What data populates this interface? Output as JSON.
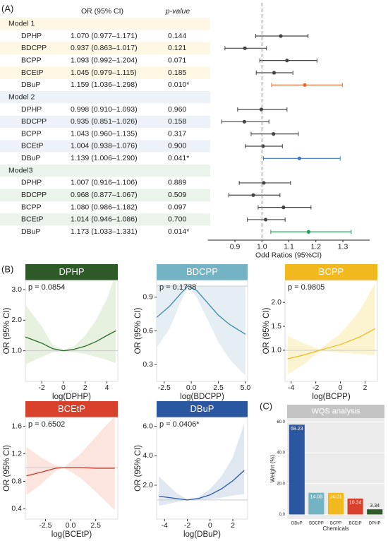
{
  "panels": {
    "a": "(A)",
    "b": "(B)",
    "c": "(C)"
  },
  "chart_data": [
    {
      "type": "forest",
      "headers": [
        "OR (95% CI)",
        "p-value"
      ],
      "xlabel": "Odd Ratios (95%CI)",
      "xlim": [
        0.8,
        1.4
      ],
      "xticks": [
        0.9,
        {
          "value": 1,
          "label": "1.0"
        },
        1.1,
        1.2,
        1.3
      ],
      "ref_line": 1,
      "groups": [
        {
          "name": "Model 1",
          "band_color": "#fdf7e3",
          "rows": [
            {
              "label": "DPHP",
              "or_label": "1.070 (0.977–1.171)",
              "p_label": "0.144",
              "estimate": 1.07,
              "lower": 0.977,
              "upper": 1.171,
              "color": "#444444"
            },
            {
              "label": "BDCPP",
              "or_label": "0.937 (0.863–1.017)",
              "p_label": "0.121",
              "estimate": 0.937,
              "lower": 0.863,
              "upper": 1.017,
              "color": "#444444"
            },
            {
              "label": "BCPP",
              "or_label": "1.093 (0.992–1.204)",
              "p_label": "0.071",
              "estimate": 1.093,
              "lower": 0.992,
              "upper": 1.204,
              "color": "#444444"
            },
            {
              "label": "BCEtP",
              "or_label": "1.045 (0.979–1.115)",
              "p_label": "0.185",
              "estimate": 1.045,
              "lower": 0.979,
              "upper": 1.115,
              "color": "#444444"
            },
            {
              "label": "DBuP",
              "or_label": "1.159 (1.036–1.298)",
              "p_label": "0.010*",
              "estimate": 1.159,
              "lower": 1.036,
              "upper": 1.298,
              "color": "#e8692e"
            }
          ]
        },
        {
          "name": "Model 2",
          "band_color": "#edf1f8",
          "rows": [
            {
              "label": "DPHP",
              "or_label": "0.998 (0.910–1.093)",
              "p_label": "0.960",
              "estimate": 0.998,
              "lower": 0.91,
              "upper": 1.093,
              "color": "#444444"
            },
            {
              "label": "BDCPP",
              "or_label": "0.935 (0.851–1.026)",
              "p_label": "0.158",
              "estimate": 0.935,
              "lower": 0.851,
              "upper": 1.026,
              "color": "#444444"
            },
            {
              "label": "BCPP",
              "or_label": "1.043 (0.960–1.135)",
              "p_label": "0.317",
              "estimate": 1.043,
              "lower": 0.96,
              "upper": 1.135,
              "color": "#444444"
            },
            {
              "label": "BCEtP",
              "or_label": "1.004 (0.938–1.076)",
              "p_label": "0.900",
              "estimate": 1.004,
              "lower": 0.938,
              "upper": 1.076,
              "color": "#444444"
            },
            {
              "label": "DBuP",
              "or_label": "1.139 (1.006–1.290)",
              "p_label": "0.041*",
              "estimate": 1.139,
              "lower": 1.006,
              "upper": 1.29,
              "color": "#3a78c4"
            }
          ]
        },
        {
          "name": "Model3",
          "band_color": "#eaf4ea",
          "rows": [
            {
              "label": "DPHP",
              "or_label": "1.007 (0.916–1.106)",
              "p_label": "0.889",
              "estimate": 1.007,
              "lower": 0.916,
              "upper": 1.106,
              "color": "#444444"
            },
            {
              "label": "BDCPP",
              "or_label": "0.968 (0.877–1.067)",
              "p_label": "0.509",
              "estimate": 0.968,
              "lower": 0.877,
              "upper": 1.067,
              "color": "#444444"
            },
            {
              "label": "BCPP",
              "or_label": "1.080 (0.986–1.182)",
              "p_label": "0.097",
              "estimate": 1.08,
              "lower": 0.986,
              "upper": 1.182,
              "color": "#444444"
            },
            {
              "label": "BCEtP",
              "or_label": "1.014 (0.946–1.086)",
              "p_label": "0.700",
              "estimate": 1.014,
              "lower": 0.946,
              "upper": 1.086,
              "color": "#444444"
            },
            {
              "label": "DBuP",
              "or_label": "1.173 (1.033–1.331)",
              "p_label": "0.014*",
              "estimate": 1.173,
              "lower": 1.033,
              "upper": 1.331,
              "color": "#2a9a5a"
            }
          ]
        }
      ]
    },
    {
      "type": "rcs",
      "title": "DPHP",
      "p_text": "p = 0.0854",
      "xlabel": "log(DPHP)",
      "ylabel": "OR (95% CI)",
      "header_color": "#2d5a27",
      "color": "#2e6b2a",
      "band_color": "#e4f0dd",
      "ref_line": 1,
      "xlim": [
        -3.5,
        5
      ],
      "xticks": [
        -2,
        0,
        2,
        4
      ],
      "ylim": [
        0,
        3.3
      ],
      "yticks": [
        {
          "value": 1,
          "label": "1.0"
        },
        {
          "value": 2,
          "label": "2.0"
        },
        {
          "value": 3,
          "label": "3.0"
        }
      ],
      "x": [
        -3.5,
        -2,
        -1,
        0,
        1,
        2,
        3,
        4,
        4.8
      ],
      "values": [
        1.45,
        1.25,
        1.07,
        1.0,
        1.05,
        1.15,
        1.3,
        1.5,
        1.65
      ],
      "lower": [
        0.55,
        0.8,
        0.95,
        0.98,
        0.95,
        0.9,
        0.8,
        0.7,
        0.6
      ],
      "upper": [
        2.5,
        1.8,
        1.2,
        1.02,
        1.15,
        1.5,
        2.0,
        2.7,
        3.5
      ]
    },
    {
      "type": "rcs",
      "title": "BDCPP",
      "p_text": "p = 0.1738",
      "xlabel": "log(BDCPP)",
      "ylabel": "OR (95% CI)",
      "header_color": "#74b3c4",
      "color": "#3a8ab0",
      "band_color": "#e2edf2",
      "ref_line": 1,
      "xlim": [
        -3.2,
        5.2
      ],
      "xticks": [
        -2.5,
        {
          "value": 0,
          "label": "0.0"
        },
        2.5,
        {
          "value": 5,
          "label": "5.0"
        }
      ],
      "ylim": [
        0.15,
        1.05
      ],
      "yticks": [
        0.3,
        0.6,
        0.9
      ],
      "x": [
        -3.2,
        -2,
        -1,
        -0.3,
        0.5,
        1.5,
        2.5,
        3.5,
        5
      ],
      "values": [
        0.72,
        0.82,
        0.93,
        1.0,
        0.96,
        0.85,
        0.74,
        0.66,
        0.57
      ],
      "lower": [
        0.45,
        0.62,
        0.85,
        0.99,
        0.9,
        0.7,
        0.5,
        0.35,
        0.2
      ],
      "upper": [
        1.02,
        1.01,
        1.0,
        1.0,
        1.0,
        1.0,
        1.0,
        1.0,
        1.0
      ]
    },
    {
      "type": "rcs",
      "title": "BCPP",
      "p_text": "p = 0.9805",
      "xlabel": "log(BCPP)",
      "ylabel": "OR (95% CI)",
      "header_color": "#f2b91f",
      "color": "#f0bb26",
      "band_color": "#fcf2cc",
      "ref_line": 1,
      "xlim": [
        -4.5,
        3
      ],
      "xticks": [
        -4,
        -2,
        0,
        2
      ],
      "ylim": [
        0.35,
        2.46
      ],
      "yticks": [
        {
          "value": 1,
          "label": "1.0"
        },
        1.5,
        {
          "value": 2,
          "label": "2.0"
        }
      ],
      "x": [
        -4.3,
        -3,
        -1.7,
        0,
        1.5,
        2.8
      ],
      "values": [
        0.82,
        0.9,
        1.0,
        1.12,
        1.27,
        1.45
      ],
      "lower": [
        0.5,
        0.7,
        0.98,
        0.95,
        0.92,
        0.9
      ],
      "upper": [
        1.3,
        1.15,
        1.02,
        1.35,
        1.8,
        2.4
      ]
    },
    {
      "type": "rcs",
      "title": "BCEtP",
      "p_text": "p = 0.6502",
      "xlabel": "log(BCEtP)",
      "ylabel": "OR (95% CI)",
      "header_color": "#d8412c",
      "color": "#c0392b",
      "band_color": "#fbe2da",
      "ref_line": 1,
      "xlim": [
        -4.5,
        4.7
      ],
      "xticks": [
        -2.5,
        {
          "value": 0,
          "label": "0.0"
        },
        2.5
      ],
      "ylim": [
        0.25,
        1.73
      ],
      "yticks": [
        0.4,
        0.8,
        1.2,
        1.6
      ],
      "x": [
        -4.4,
        -3,
        -1.5,
        -0.7,
        1,
        2.5,
        4.4
      ],
      "values": [
        0.88,
        0.93,
        0.99,
        1.0,
        1.0,
        0.99,
        0.99
      ],
      "lower": [
        0.6,
        0.75,
        0.95,
        1.0,
        0.85,
        0.65,
        0.38
      ],
      "upper": [
        1.3,
        1.15,
        1.03,
        1.0,
        1.2,
        1.45,
        1.75
      ]
    },
    {
      "type": "rcs",
      "title": "DBuP",
      "p_text": "p = 0.0406*",
      "xlabel": "log(DBuP)",
      "ylabel": "OR (95% CI)",
      "header_color": "#2b56a0",
      "color": "#2b56a0",
      "band_color": "#dce5f0",
      "ref_line": 1,
      "xlim": [
        -4.7,
        3.3
      ],
      "xticks": [
        -4,
        -2,
        0,
        2
      ],
      "ylim": [
        -0.3,
        6.6
      ],
      "yticks": [
        {
          "value": 2,
          "label": "2.0"
        },
        {
          "value": 4,
          "label": "4.0"
        },
        {
          "value": 6,
          "label": "6.0"
        }
      ],
      "x": [
        -4.5,
        -3,
        -2,
        -1,
        0,
        1,
        2,
        3
      ],
      "values": [
        1.25,
        1.1,
        1.0,
        1.1,
        1.35,
        1.75,
        2.3,
        3.0
      ],
      "lower": [
        0.6,
        0.85,
        0.98,
        1.0,
        1.05,
        1.15,
        1.3,
        1.4
      ],
      "upper": [
        2.6,
        1.5,
        1.02,
        1.2,
        1.75,
        2.6,
        3.9,
        6.2
      ]
    },
    {
      "type": "bar",
      "title": "WQS analysis",
      "xlabel": "Chemicals",
      "ylabel": "Weight (%)",
      "categories": [
        "DBuP",
        "BDCPP",
        "BCPP",
        "BCEtP",
        "DPHP"
      ],
      "values": [
        58.23,
        14.08,
        14.01,
        10.34,
        3.34
      ],
      "colors": [
        "#2b56a0",
        "#74b3c4",
        "#f2b91f",
        "#d8412c",
        "#2d5a27"
      ],
      "ylim": [
        -3,
        62.5
      ],
      "yticks": [
        {
          "value": 0,
          "label": "0.0"
        },
        {
          "value": 20,
          "label": "20.0"
        },
        {
          "value": 40,
          "label": "40.0"
        },
        {
          "value": 60,
          "label": "60.0"
        }
      ],
      "grid": true
    }
  ]
}
